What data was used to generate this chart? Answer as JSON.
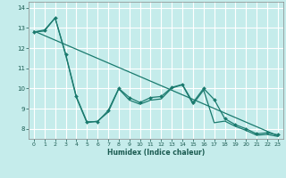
{
  "title": "",
  "xlabel": "Humidex (Indice chaleur)",
  "bg_color": "#c5eceb",
  "grid_color": "#ffffff",
  "line_color": "#1a7a6e",
  "xlim": [
    -0.5,
    23.5
  ],
  "ylim": [
    7.5,
    14.3
  ],
  "yticks": [
    8,
    9,
    10,
    11,
    12,
    13,
    14
  ],
  "xticks": [
    0,
    1,
    2,
    3,
    4,
    5,
    6,
    7,
    8,
    9,
    10,
    11,
    12,
    13,
    14,
    15,
    16,
    17,
    18,
    19,
    20,
    21,
    22,
    23
  ],
  "line1_x": [
    0,
    1,
    2,
    3,
    4,
    5,
    6,
    7,
    8,
    9,
    10,
    11,
    12,
    13,
    14,
    15,
    16,
    17,
    18,
    19,
    20,
    21,
    22,
    23
  ],
  "line1_y": [
    12.8,
    12.9,
    13.5,
    11.7,
    9.6,
    8.35,
    8.35,
    8.9,
    10.0,
    9.55,
    9.3,
    9.55,
    9.6,
    10.05,
    10.2,
    9.3,
    10.0,
    9.45,
    8.5,
    8.2,
    8.0,
    7.75,
    7.8,
    7.7
  ],
  "line2_x": [
    0,
    23
  ],
  "line2_y": [
    12.85,
    7.65
  ],
  "line3_x": [
    0,
    1,
    2,
    3,
    4,
    5,
    6,
    7,
    8,
    9,
    10,
    11,
    12,
    13,
    14,
    15,
    16,
    17,
    18,
    19,
    20,
    21,
    22,
    23
  ],
  "line3_y": [
    12.8,
    12.85,
    13.5,
    11.65,
    9.55,
    8.3,
    8.38,
    8.82,
    9.98,
    9.42,
    9.22,
    9.42,
    9.48,
    10.02,
    10.18,
    9.22,
    9.92,
    8.3,
    8.38,
    8.12,
    7.92,
    7.68,
    7.72,
    7.62
  ]
}
